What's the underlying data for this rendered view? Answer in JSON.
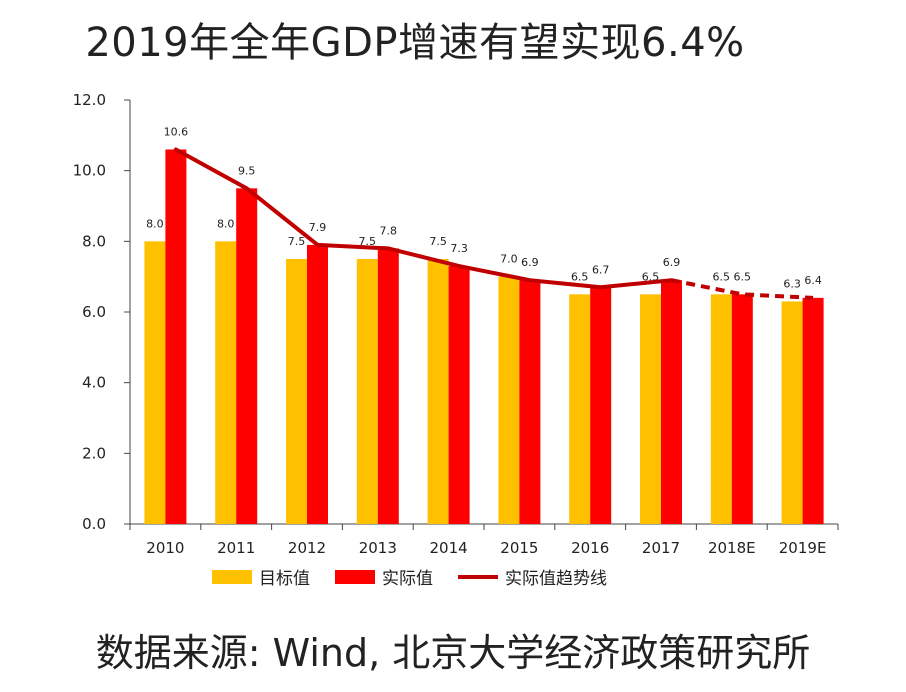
{
  "title": "2019年全年GDP增速有望实现6.4%",
  "source": "数据来源: Wind, 北京大学经济政策研究所",
  "colors": {
    "target": "#FFC000",
    "actual": "#FF0000",
    "trend": "#C00000"
  },
  "chart_data": {
    "type": "bar",
    "title": "2019年全年GDP增速有望实现6.4%",
    "categories": [
      "2010",
      "2011",
      "2012",
      "2013",
      "2014",
      "2015",
      "2016",
      "2017",
      "2018E",
      "2019E"
    ],
    "series": [
      {
        "name": "目标值",
        "type": "bar",
        "values": [
          8.0,
          8.0,
          7.5,
          7.5,
          7.5,
          7.0,
          6.5,
          6.5,
          6.5,
          6.3
        ],
        "labels": [
          "8.0",
          "8.0",
          "7.5",
          "7.5",
          "7.5",
          "7.0",
          "6.5",
          "6.5",
          "6.5",
          "6.3"
        ]
      },
      {
        "name": "实际值",
        "type": "bar",
        "values": [
          10.6,
          9.5,
          7.9,
          7.8,
          7.3,
          6.9,
          6.7,
          6.9,
          6.5,
          6.4
        ],
        "labels": [
          "10.6",
          "9.5",
          "7.9",
          "7.8",
          "7.3",
          "6.9",
          "6.7",
          "6.9",
          "6.5",
          "6.4"
        ]
      },
      {
        "name": "实际值趋势线",
        "type": "line",
        "values": [
          10.6,
          9.5,
          7.9,
          7.8,
          7.3,
          6.9,
          6.7,
          6.9,
          6.5,
          6.4
        ],
        "dashed_from_index": 7
      }
    ],
    "ylim": [
      0,
      12
    ],
    "yticks": [
      "0.0",
      "2.0",
      "4.0",
      "6.0",
      "8.0",
      "10.0",
      "12.0"
    ],
    "ytick_values": [
      0,
      2,
      4,
      6,
      8,
      10,
      12
    ],
    "xlabel": "",
    "ylabel": "",
    "grid": false,
    "legend_position": "bottom"
  }
}
